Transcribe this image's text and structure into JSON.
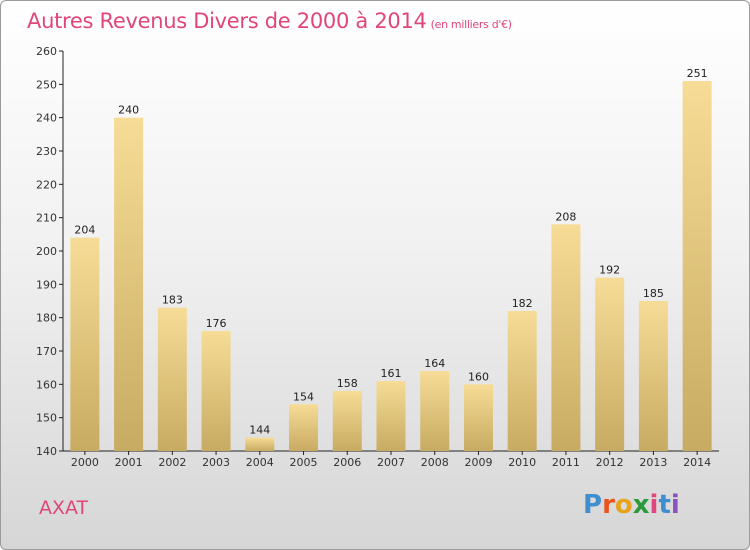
{
  "header": {
    "title": "Autres Revenus Divers de 2000 à 2014",
    "subtitle": "(en milliers d'€)"
  },
  "footer": {
    "commune": "AXAT",
    "brand": "Proxiti",
    "brand_colors": [
      "#3e8ed0",
      "#e8541c",
      "#e8a31c",
      "#2c9a3a",
      "#e0457b",
      "#3e8ed0",
      "#8a4fc0"
    ]
  },
  "colors": {
    "accent": "#e0457b",
    "bar_light": "#f6dc96",
    "bar_dark": "#c8ab62"
  },
  "chart_data": {
    "type": "bar",
    "categories": [
      "2000",
      "2001",
      "2002",
      "2003",
      "2004",
      "2005",
      "2006",
      "2007",
      "2008",
      "2009",
      "2010",
      "2011",
      "2012",
      "2013",
      "2014"
    ],
    "values": [
      204,
      240,
      183,
      176,
      144,
      154,
      158,
      161,
      164,
      160,
      182,
      208,
      192,
      185,
      251
    ],
    "ylim": [
      140,
      260
    ],
    "yticks": [
      140,
      150,
      160,
      170,
      180,
      190,
      200,
      210,
      220,
      230,
      240,
      250,
      260
    ],
    "grid": false,
    "xlabel": "",
    "ylabel": ""
  }
}
